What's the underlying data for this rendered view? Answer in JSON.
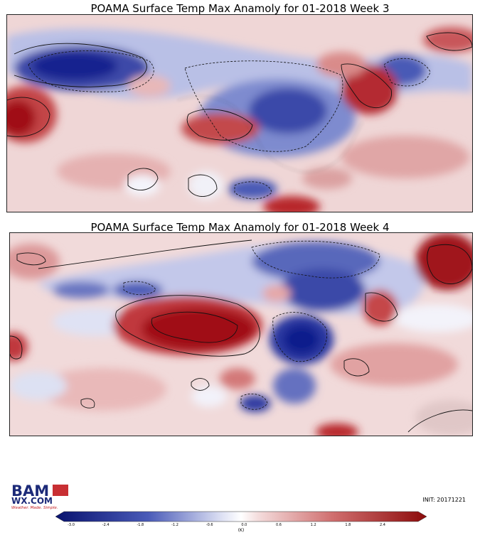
{
  "titles": {
    "week3": "POAMA Surface Temp Max Anamoly for 01-2018 Week 3",
    "week4": "POAMA Surface Temp Max Anamoly for 01-2018 Week 4"
  },
  "logo": {
    "line1": "BAM",
    "line2": "WX.COM",
    "tagline": "Weather. Made. Simple."
  },
  "init": "INIT: 20171221",
  "colorbar": {
    "ticks": [
      "-3.0",
      "-2.4",
      "-1.8",
      "-1.2",
      "-0.6",
      "0.0",
      "0.6",
      "1.2",
      "1.8",
      "2.4"
    ],
    "unit": "(K)",
    "min_color": "#08126e",
    "mid_color": "#ffffff",
    "max_color": "#8c0b0b"
  },
  "colors": {
    "warm_strong": "#a11214",
    "warm_mid": "#d27774",
    "warm_light": "#ecc6c5",
    "cool_strong": "#0f1e8c",
    "cool_mid": "#4757b3",
    "cool_light": "#b9c0e6"
  }
}
